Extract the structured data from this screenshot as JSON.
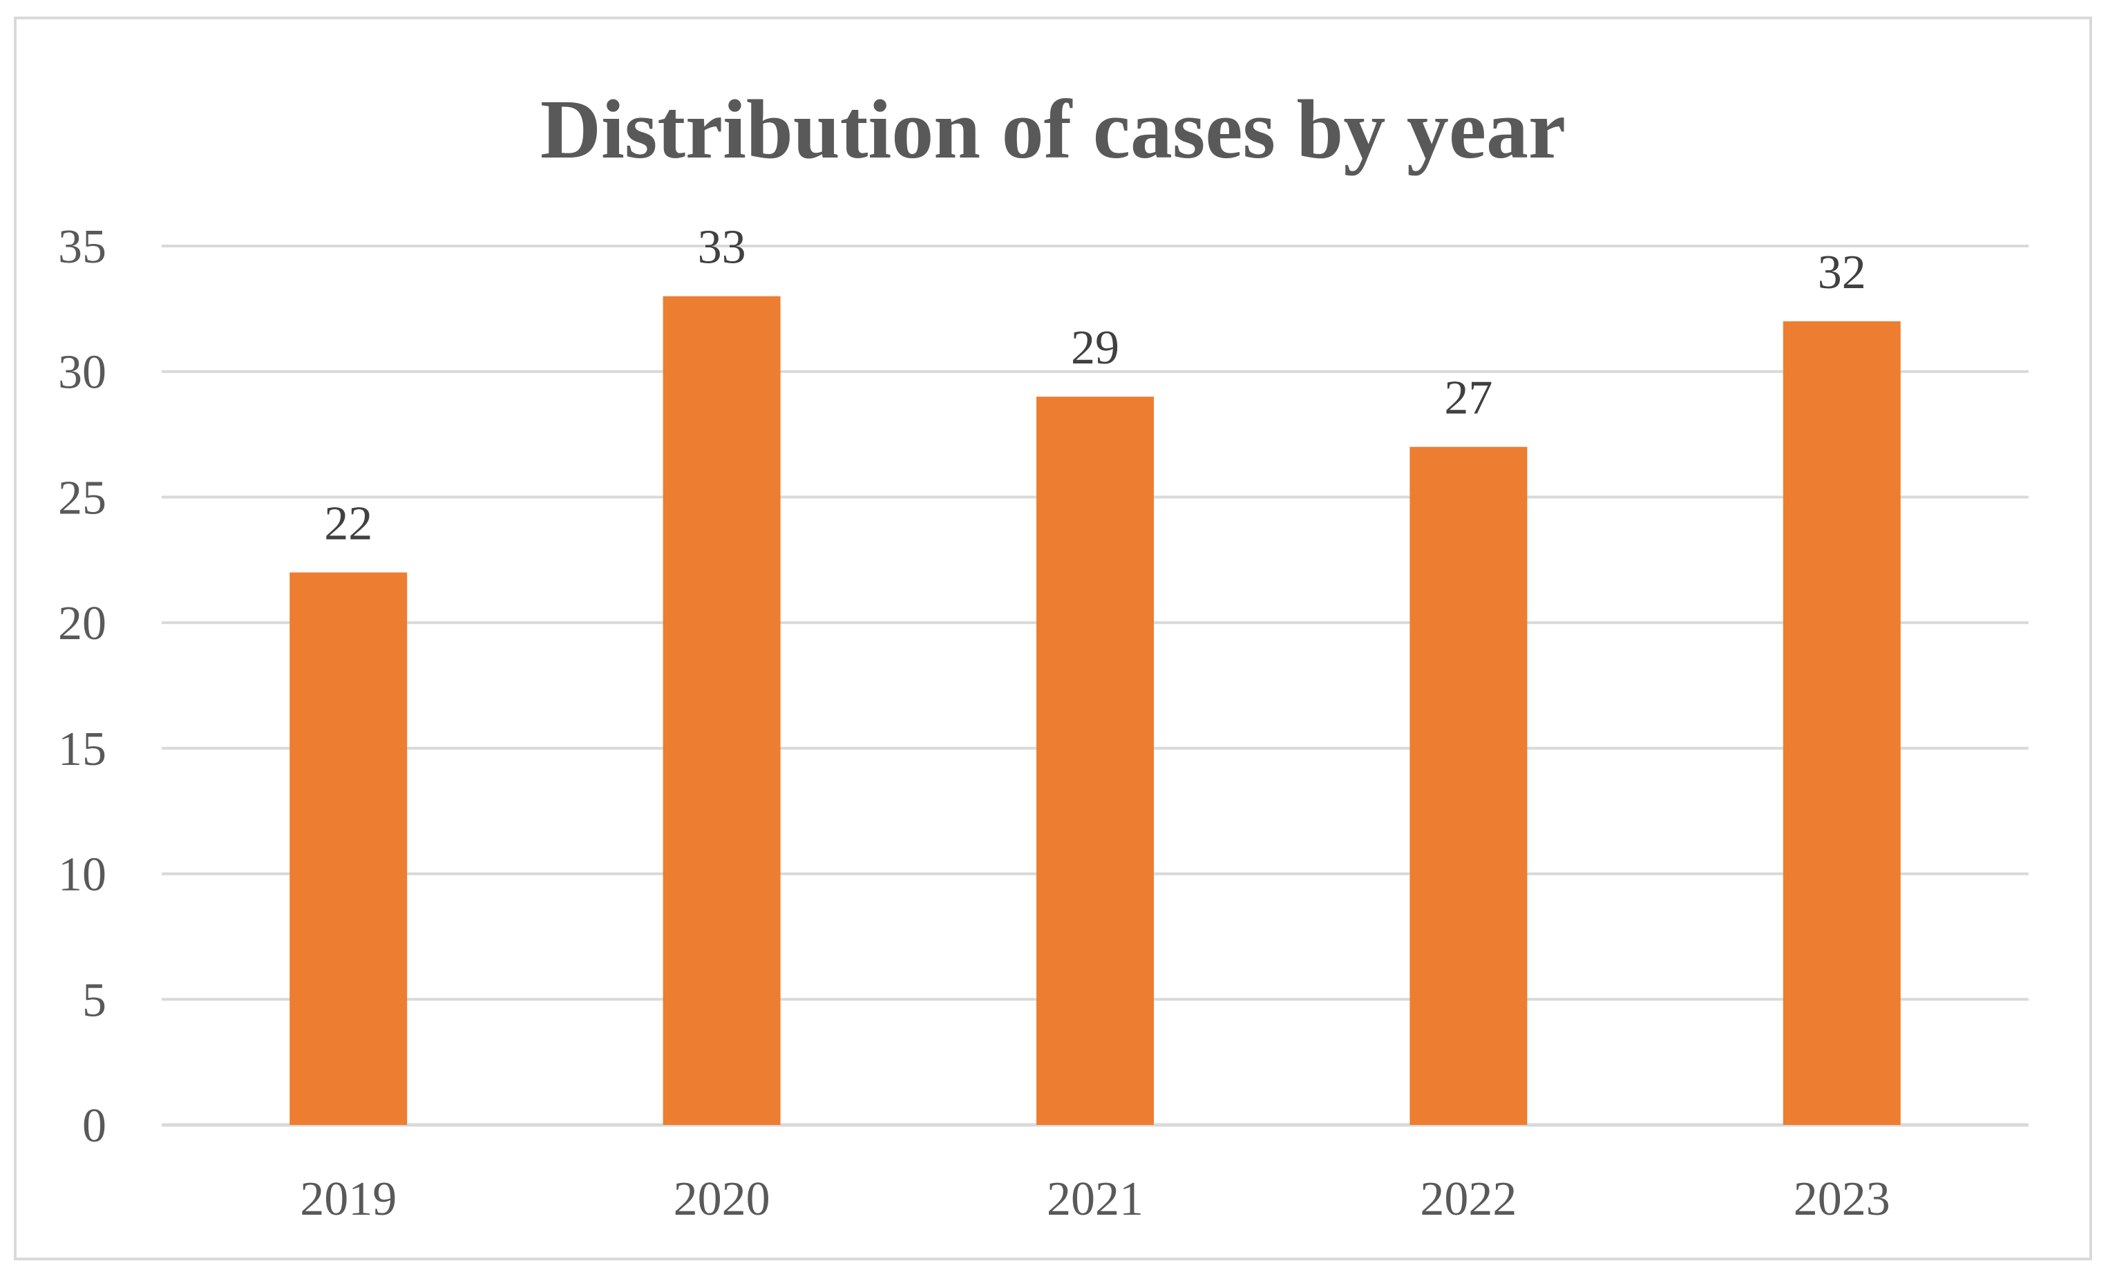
{
  "chart_data": {
    "type": "bar",
    "title": "Distribution of cases by year",
    "xlabel": "",
    "ylabel": "",
    "categories": [
      "2019",
      "2020",
      "2021",
      "2022",
      "2023"
    ],
    "values": [
      22,
      33,
      29,
      27,
      32
    ],
    "data_labels": [
      "22",
      "33",
      "29",
      "27",
      "32"
    ],
    "ylim": [
      0,
      35
    ],
    "yticks": [
      0,
      5,
      10,
      15,
      20,
      25,
      30,
      35
    ],
    "ytick_labels": [
      "0",
      "5",
      "10",
      "15",
      "20",
      "25",
      "30",
      "35"
    ],
    "grid": true,
    "legend": "none"
  },
  "colors": {
    "bar": "#ed7d31",
    "gridline": "#d9d9d9",
    "axis_text": "#595959",
    "title_text": "#595959",
    "label_text": "#404040",
    "frame": "#d9d9d9"
  }
}
